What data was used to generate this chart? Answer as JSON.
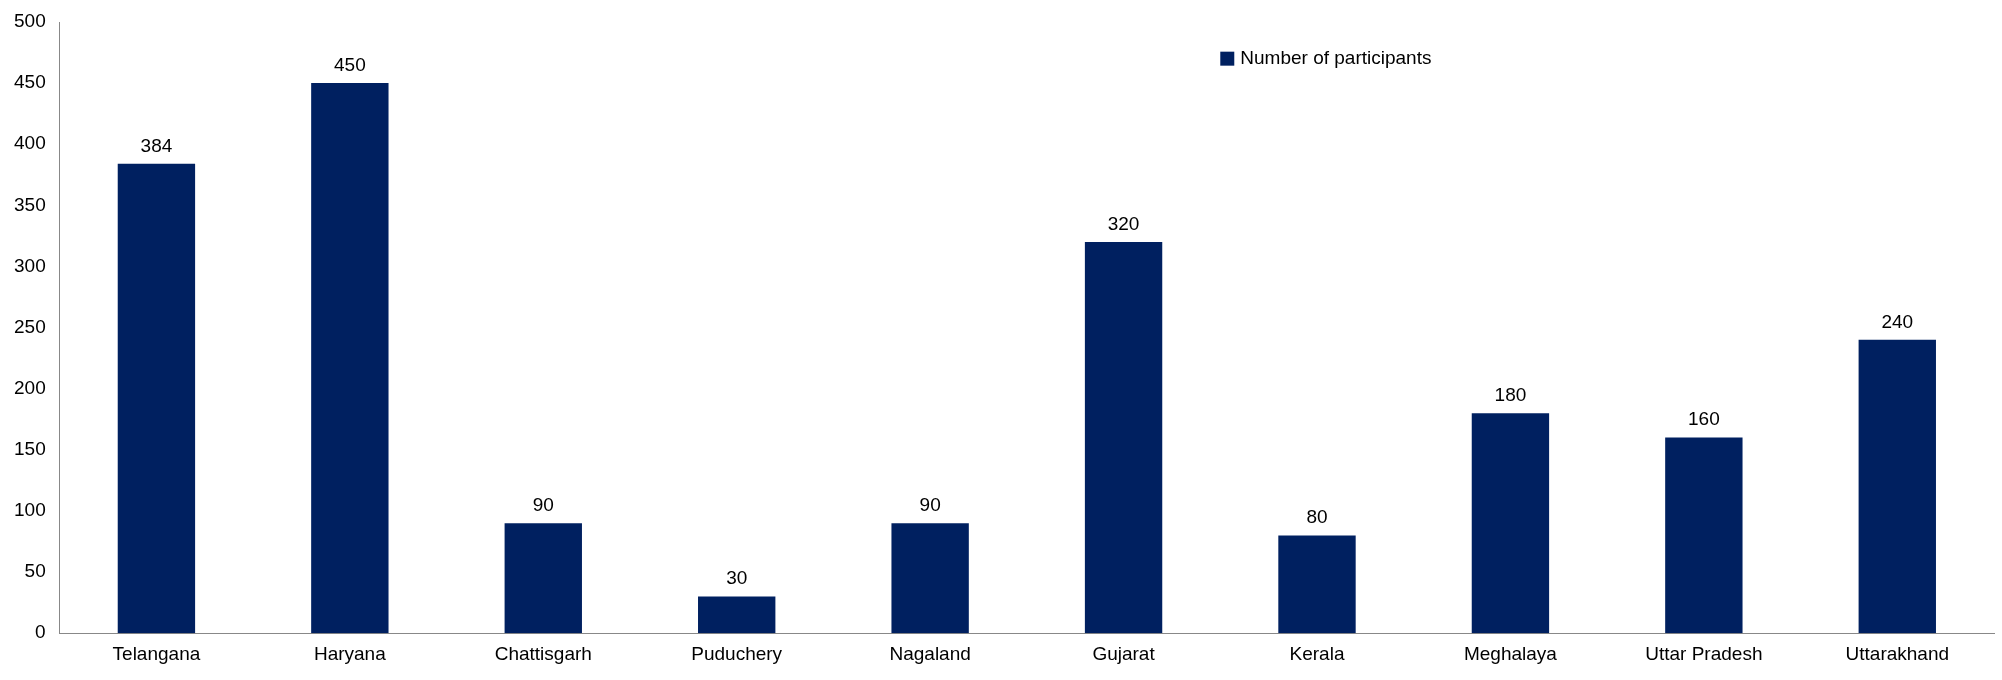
{
  "chart_data": {
    "type": "bar",
    "categories": [
      "Telangana",
      "Haryana",
      "Chattisgarh",
      "Puduchery",
      "Nagaland",
      "Gujarat",
      "Kerala",
      "Meghalaya",
      "Uttar Pradesh",
      "Uttarakhand"
    ],
    "series": [
      {
        "name": "Number of participants",
        "color": "#002060",
        "values": [
          384,
          450,
          90,
          30,
          90,
          320,
          80,
          180,
          160,
          240
        ]
      }
    ],
    "ylim": [
      0,
      500
    ],
    "yticks": [
      0,
      50,
      100,
      150,
      200,
      250,
      300,
      350,
      400,
      450,
      500
    ],
    "grid": false,
    "legend": "top right",
    "data_labels": true
  }
}
